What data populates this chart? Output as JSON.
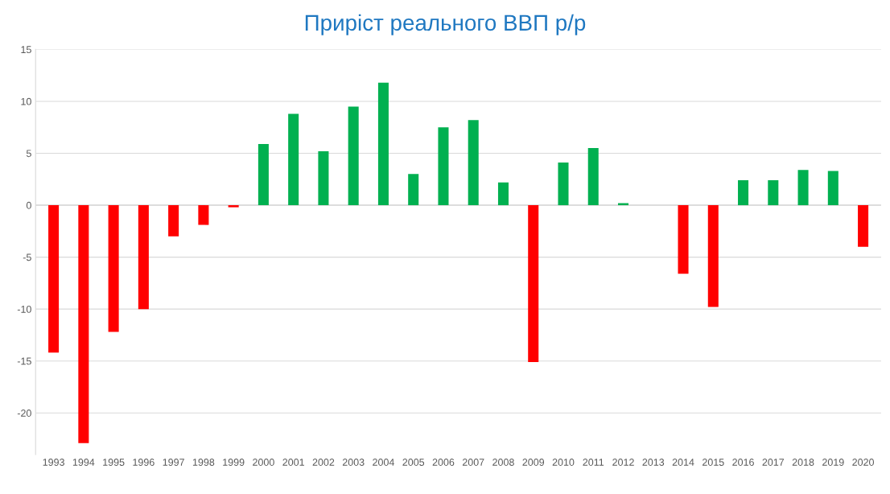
{
  "chart_data": {
    "type": "bar",
    "title": "Приріст реального ВВП р/р",
    "categories": [
      "1993",
      "1994",
      "1995",
      "1996",
      "1997",
      "1998",
      "1999",
      "2000",
      "2001",
      "2002",
      "2003",
      "2004",
      "2005",
      "2006",
      "2007",
      "2008",
      "2009",
      "2010",
      "2011",
      "2012",
      "2013",
      "2014",
      "2015",
      "2016",
      "2017",
      "2018",
      "2019",
      "2020"
    ],
    "values": [
      -14.2,
      -22.9,
      -12.2,
      -10.0,
      -3.0,
      -1.9,
      -0.2,
      5.9,
      8.8,
      5.2,
      9.5,
      11.8,
      3.0,
      7.5,
      8.2,
      2.2,
      -15.1,
      4.1,
      5.5,
      0.2,
      0.0,
      -6.6,
      -9.8,
      2.4,
      2.4,
      3.4,
      3.3,
      -4.0
    ],
    "colors": [
      "#ff0000",
      "#ff0000",
      "#ff0000",
      "#ff0000",
      "#ff0000",
      "#ff0000",
      "#ff0000",
      "#00b050",
      "#00b050",
      "#00b050",
      "#00b050",
      "#00b050",
      "#00b050",
      "#00b050",
      "#00b050",
      "#00b050",
      "#ff0000",
      "#00b050",
      "#00b050",
      "#00b050",
      "#00b050",
      "#ff0000",
      "#ff0000",
      "#00b050",
      "#00b050",
      "#00b050",
      "#00b050",
      "#ff0000"
    ],
    "ylim": [
      -24,
      15
    ],
    "yticks": [
      {
        "value": -20,
        "label": "-20"
      },
      {
        "value": -15,
        "label": "-15"
      },
      {
        "value": -10,
        "label": "-10"
      },
      {
        "value": -5,
        "label": "-5"
      },
      0,
      5,
      10,
      15
    ],
    "grid": "y",
    "legend": false
  }
}
